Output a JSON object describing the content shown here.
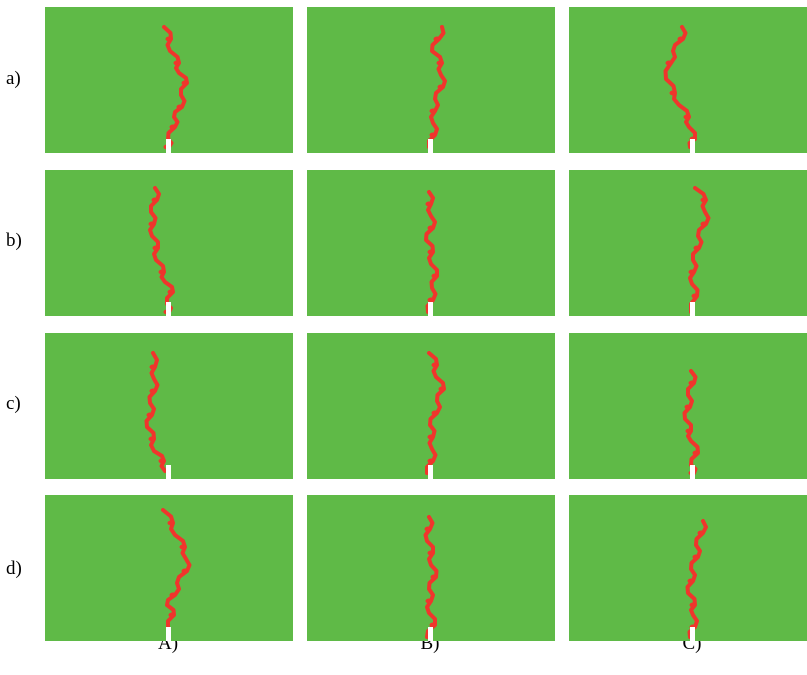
{
  "row_labels": [
    "a)",
    "b)",
    "c)",
    "d)"
  ],
  "col_labels": [
    "A)",
    "B)",
    "C)"
  ],
  "colors": {
    "background": "#5fba47",
    "crack": "#f0352c",
    "notch": "#ffffff"
  }
}
